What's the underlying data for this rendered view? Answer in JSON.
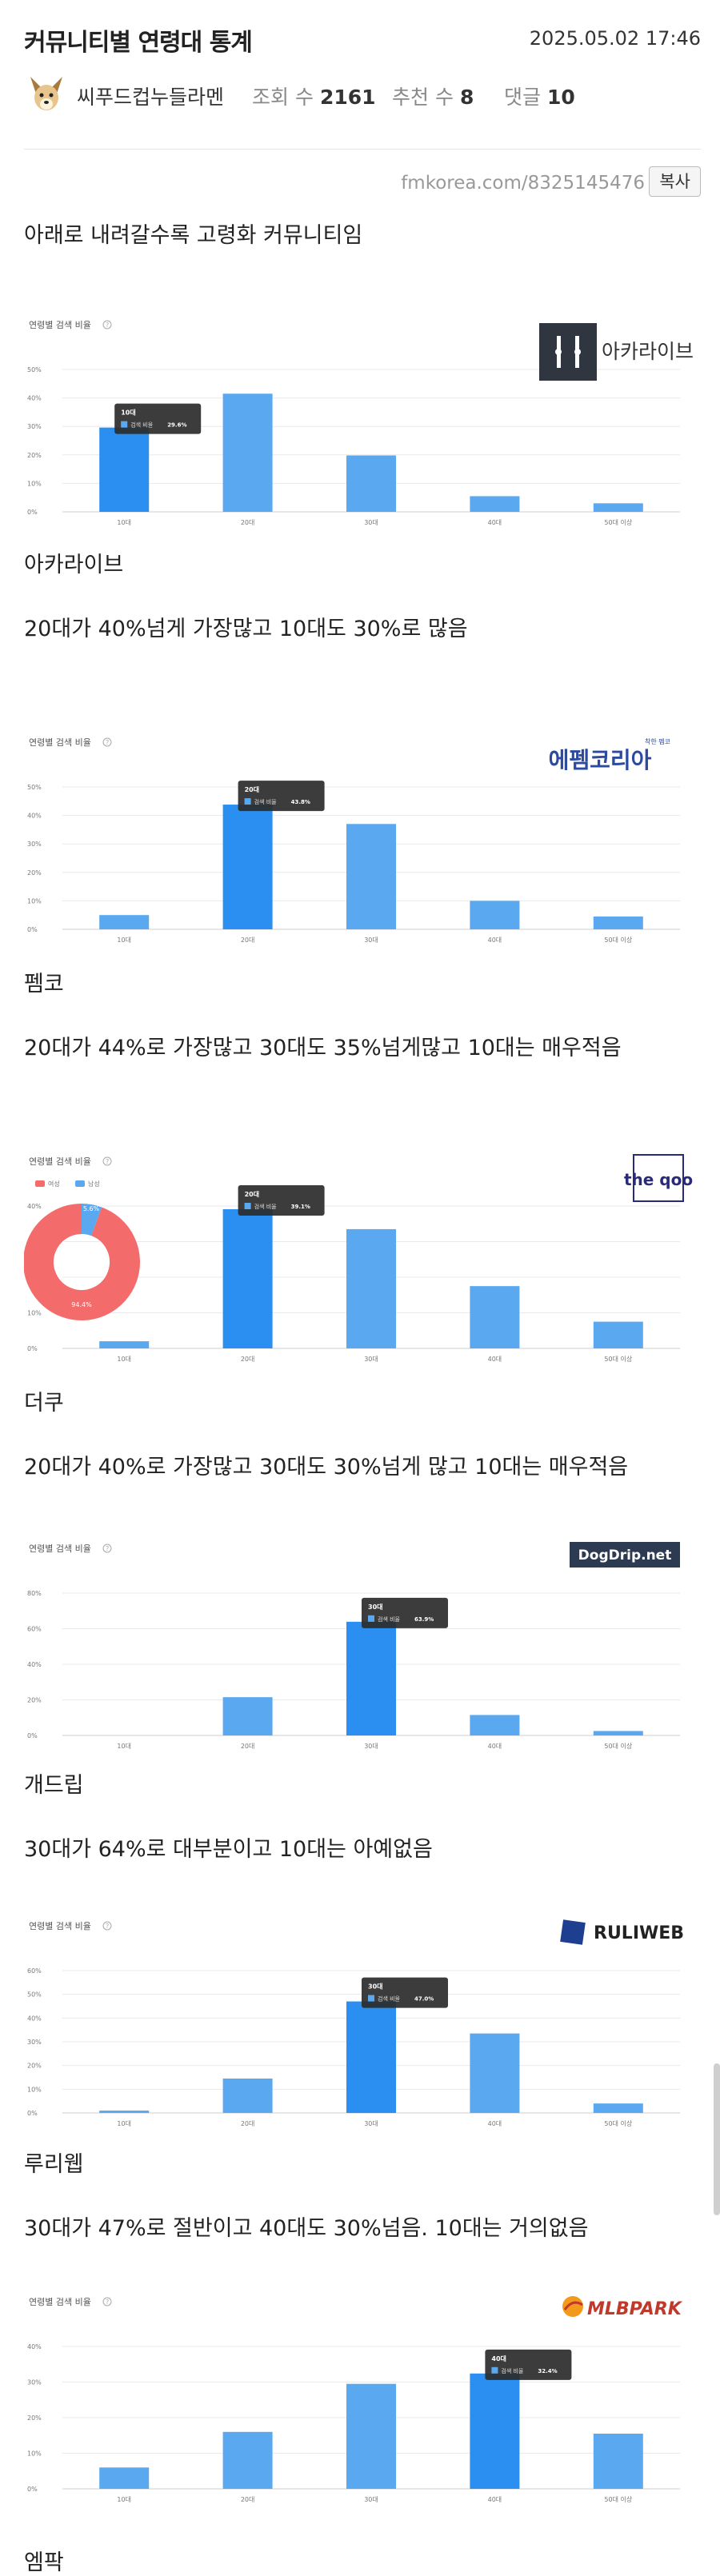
{
  "post": {
    "title": "커뮤니티별 연령대 통계",
    "date": "2025.05.02 17:46",
    "author": "씨푸드컵누들라멘",
    "views_label": "조회 수",
    "views": "2161",
    "likes_label": "추천 수",
    "likes": "8",
    "comments_label": "댓글",
    "comments": "10",
    "url": "fmkorea.com/8325145476",
    "copy_label": "복사",
    "intro": "아래로 내려갈수록 고령화 커뮤니티임"
  },
  "sections": [
    {
      "name": "아카라이브",
      "desc": "20대가 40%넘게 가장많고 10대도 30%로 많음"
    },
    {
      "name": "펨코",
      "desc": "20대가 44%로 가장많고 30대도 35%넘게많고 10대는 매우적음"
    },
    {
      "name": "더쿠",
      "desc": "20대가 40%로 가장많고 30대도 30%넘게 많고 10대는 매우적음"
    },
    {
      "name": "개드립",
      "desc": "30대가 64%로 대부분이고 10대는 아예없음"
    },
    {
      "name": "루리웹",
      "desc": "30대가 47%로 절반이고 40대도 30%넘음. 10대는 거의없음"
    },
    {
      "name": "엠팍",
      "desc": ""
    }
  ],
  "colors": {
    "bar": "#5aa9f0",
    "bar_active": "#2a8ff0",
    "tooltip_bg": "#2b2b2b",
    "grid": "#e9e9e9",
    "female": "#f46b6b",
    "male": "#5aa9f0"
  },
  "chart_data": [
    {
      "type": "bar",
      "title": "연령별 검색 비율",
      "categories": [
        "10대",
        "20대",
        "30대",
        "40대",
        "50대 이상"
      ],
      "values": [
        29.6,
        41.5,
        19.8,
        5.5,
        3.0
      ],
      "ylim": [
        0,
        50
      ],
      "yticks": [
        "0%",
        "10%",
        "20%",
        "30%",
        "40%",
        "50%"
      ],
      "tooltip": {
        "index": 0,
        "title": "10대",
        "label": "검색 비율",
        "value": "29.6%"
      },
      "logo_text": "아카라이브"
    },
    {
      "type": "bar",
      "title": "연령별 검색 비율",
      "categories": [
        "10대",
        "20대",
        "30대",
        "40대",
        "50대 이상"
      ],
      "values": [
        5.0,
        43.8,
        37.0,
        10.0,
        4.5
      ],
      "ylim": [
        0,
        50
      ],
      "yticks": [
        "0%",
        "10%",
        "20%",
        "30%",
        "40%",
        "50%"
      ],
      "tooltip": {
        "index": 1,
        "title": "20대",
        "label": "검색 비율",
        "value": "43.8%"
      },
      "logo_text": "에펨코리아",
      "logo_small": "착한 펨코"
    },
    {
      "type": "bar",
      "title": "연령별 검색 비율",
      "categories": [
        "10대",
        "20대",
        "30대",
        "40대",
        "50대 이상"
      ],
      "values": [
        2.0,
        39.1,
        33.5,
        17.5,
        7.5
      ],
      "ylim": [
        0,
        40
      ],
      "yticks": [
        "0%",
        "10%",
        "20%",
        "30%",
        "40%"
      ],
      "tooltip": {
        "index": 1,
        "title": "20대",
        "label": "검색 비율",
        "value": "39.1%"
      },
      "logo_text": "the qoo",
      "donut": {
        "legend": [
          "여성",
          "남성"
        ],
        "female": 94.4,
        "male": 5.6,
        "female_label": "94.4%",
        "male_label": "5.6%"
      }
    },
    {
      "type": "bar",
      "title": "연령별 검색 비율",
      "categories": [
        "10대",
        "20대",
        "30대",
        "40대",
        "50대 이상"
      ],
      "values": [
        0.0,
        21.5,
        63.9,
        11.5,
        2.5
      ],
      "ylim": [
        0,
        80
      ],
      "yticks": [
        "0%",
        "20%",
        "40%",
        "60%",
        "80%"
      ],
      "tooltip": {
        "index": 2,
        "title": "30대",
        "label": "검색 비율",
        "value": "63.9%"
      },
      "logo_text": "DogDrip.net"
    },
    {
      "type": "bar",
      "title": "연령별 검색 비율",
      "categories": [
        "10대",
        "20대",
        "30대",
        "40대",
        "50대 이상"
      ],
      "values": [
        1.0,
        14.5,
        47.0,
        33.5,
        4.0
      ],
      "ylim": [
        0,
        60
      ],
      "yticks": [
        "0%",
        "10%",
        "20%",
        "30%",
        "40%",
        "50%",
        "60%"
      ],
      "tooltip": {
        "index": 2,
        "title": "30대",
        "label": "검색 비율",
        "value": "47.0%"
      },
      "logo_text": "RULIWEB"
    },
    {
      "type": "bar",
      "title": "연령별 검색 비율",
      "categories": [
        "10대",
        "20대",
        "30대",
        "40대",
        "50대 이상"
      ],
      "values": [
        6.0,
        16.0,
        29.5,
        32.4,
        15.5
      ],
      "ylim": [
        0,
        40
      ],
      "yticks": [
        "0%",
        "10%",
        "20%",
        "30%",
        "40%"
      ],
      "tooltip": {
        "index": 3,
        "title": "40대",
        "label": "검색 비율",
        "value": "32.4%"
      },
      "logo_text": "MLBPARK"
    }
  ]
}
